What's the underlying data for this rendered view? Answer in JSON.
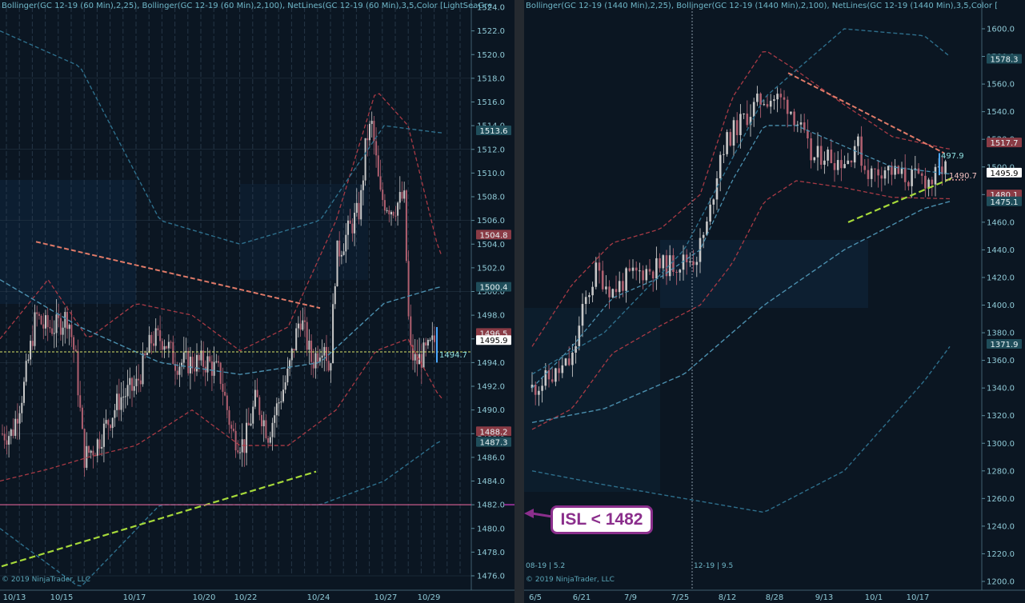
{
  "left": {
    "header": "Bollinger(GC 12-19 (60 Min),2,25), Bollinger(GC 12-19 (60 Min),2,100), NetLines(GC 12-19 (60 Min),3,5,Color [LightSeaGre",
    "copyright": "© 2019 NinjaTrader, LLC",
    "price_axis": [
      "1524.0",
      "1522.0",
      "1520.0",
      "1518.0",
      "1516.0",
      "1514.0",
      "1512.0",
      "1510.0",
      "1508.0",
      "1506.0",
      "1504.0",
      "1502.0",
      "1500.0",
      "1498.0",
      "1496.0",
      "1494.0",
      "1492.0",
      "1490.0",
      "1488.0",
      "1486.0",
      "1484.0",
      "1482.0",
      "1480.0",
      "1478.0",
      "1476.0"
    ],
    "date_axis": [
      "10/13",
      "10/15",
      "10/17",
      "10/20",
      "10/22",
      "10/24",
      "10/27",
      "10/29"
    ],
    "price_tags": [
      {
        "text": "1513.6",
        "value": 1513.6,
        "kind": "teal"
      },
      {
        "text": "1504.8",
        "value": 1504.8,
        "kind": "red"
      },
      {
        "text": "1500.4",
        "value": 1500.4,
        "kind": "teal"
      },
      {
        "text": "1496.5",
        "value": 1496.5,
        "kind": "red"
      },
      {
        "text": "1495.9",
        "value": 1495.9,
        "kind": "white"
      },
      {
        "text": "1488.2",
        "value": 1488.2,
        "kind": "red"
      },
      {
        "text": "1487.3",
        "value": 1487.3,
        "kind": "teal"
      }
    ],
    "last_label": "1494.7"
  },
  "right": {
    "header": "Bollinger(GC 12-19 (1440 Min),2,25), Bollinger(GC 12-19 (1440 Min),2,100), NetLines(GC 12-19 (1440 Min),3,5,Color [",
    "copyright": "© 2019 NinjaTrader, LLC",
    "price_axis": [
      "1600.0",
      "1580.0",
      "1560.0",
      "1540.0",
      "1520.0",
      "1500.0",
      "1480.0",
      "1460.0",
      "1440.0",
      "1420.0",
      "1400.0",
      "1380.0",
      "1360.0",
      "1340.0",
      "1320.0",
      "1300.0",
      "1280.0",
      "1260.0",
      "1240.0",
      "1220.0",
      "1200.0"
    ],
    "date_axis": [
      "6/5",
      "6/21",
      "7/9",
      "7/25",
      "8/12",
      "8/28",
      "9/13",
      "10/1",
      "10/17"
    ],
    "price_tags": [
      {
        "text": "1578.3",
        "value": 1578.3,
        "kind": "teal"
      },
      {
        "text": "1517.7",
        "value": 1517.7,
        "kind": "red"
      },
      {
        "text": "1495.9",
        "value": 1495.9,
        "kind": "white"
      },
      {
        "text": "1480.1",
        "value": 1480.1,
        "kind": "red"
      },
      {
        "text": "1475.1",
        "value": 1475.1,
        "kind": "teal"
      },
      {
        "text": "1371.9",
        "value": 1371.9,
        "kind": "teal"
      }
    ],
    "last_label": "497.9",
    "target_label": "1490.7",
    "contract_labels": [
      "08-19 | 5.2",
      "12-19 | 9.5"
    ]
  },
  "callout": {
    "text": "ISL < 1482"
  },
  "colors": {
    "bg": "#0b1622",
    "up": "#c8c8c8",
    "down": "#b06070",
    "bb_inner": "#a83a45",
    "bb_outer": "#2e6f8c",
    "trend_down": "#e07a68",
    "trend_up": "#a6d93a",
    "isl": "#c65a8a",
    "callout": "#8b2f8c"
  }
}
